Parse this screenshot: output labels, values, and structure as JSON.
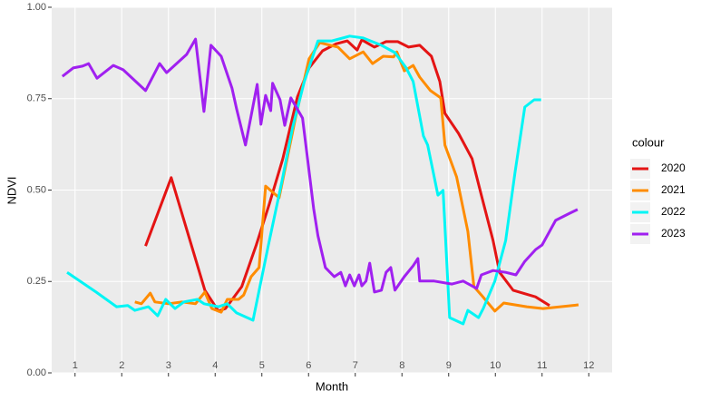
{
  "chart_data": {
    "type": "line",
    "x_label": "Month",
    "y_label": "NDVI",
    "legend_title": "colour",
    "xlim": [
      0.5,
      12.5
    ],
    "xticks": [
      1,
      2,
      3,
      4,
      5,
      6,
      7,
      8,
      9,
      10,
      11,
      12
    ],
    "ylim": [
      0,
      1
    ],
    "yticks": [
      {
        "value": 0,
        "label": "0.00"
      },
      {
        "value": 0.25,
        "label": "0.25"
      },
      {
        "value": 0.5,
        "label": "0.50"
      },
      {
        "value": 0.75,
        "label": "0.75"
      },
      {
        "value": 1,
        "label": "1.00"
      }
    ],
    "grid": true,
    "legend": "right",
    "series": [
      {
        "name": "2020",
        "color": "#e41414",
        "x": [
          2.51,
          3.06,
          3.78,
          4.07,
          4.22,
          4.57,
          4.88,
          5.16,
          5.45,
          5.76,
          6.01,
          6.3,
          6.59,
          6.83,
          7.04,
          7.14,
          7.41,
          7.66,
          7.91,
          8.14,
          8.38,
          8.63,
          8.81,
          8.92,
          9.21,
          9.5,
          9.7,
          9.95,
          10.09,
          10.38,
          10.86,
          11.16
        ],
        "values": [
          0.347,
          0.534,
          0.226,
          0.169,
          0.176,
          0.236,
          0.35,
          0.462,
          0.586,
          0.754,
          0.834,
          0.881,
          0.9,
          0.908,
          0.883,
          0.911,
          0.891,
          0.906,
          0.906,
          0.891,
          0.896,
          0.866,
          0.797,
          0.71,
          0.655,
          0.586,
          0.486,
          0.362,
          0.275,
          0.226,
          0.208,
          0.184
        ]
      },
      {
        "name": "2021",
        "color": "#ff8c00",
        "x": [
          2.28,
          2.42,
          2.61,
          2.71,
          3.0,
          3.29,
          3.58,
          3.78,
          3.93,
          4.13,
          4.26,
          4.5,
          4.61,
          4.77,
          4.94,
          5.08,
          5.37,
          5.72,
          6.01,
          6.24,
          6.63,
          6.88,
          7.17,
          7.37,
          7.6,
          7.82,
          7.89,
          8.05,
          8.24,
          8.38,
          8.61,
          8.83,
          8.92,
          9.17,
          9.41,
          9.54,
          9.7,
          9.99,
          10.18,
          10.67,
          11.02,
          11.78
        ],
        "values": [
          0.194,
          0.189,
          0.218,
          0.194,
          0.189,
          0.194,
          0.189,
          0.221,
          0.176,
          0.166,
          0.201,
          0.201,
          0.213,
          0.263,
          0.288,
          0.511,
          0.479,
          0.697,
          0.859,
          0.903,
          0.891,
          0.859,
          0.878,
          0.846,
          0.866,
          0.864,
          0.878,
          0.826,
          0.841,
          0.809,
          0.772,
          0.752,
          0.623,
          0.536,
          0.387,
          0.236,
          0.213,
          0.169,
          0.191,
          0.181,
          0.176,
          0.186
        ]
      },
      {
        "name": "2022",
        "color": "#00f5f5",
        "x": [
          0.83,
          1.45,
          1.89,
          2.13,
          2.28,
          2.57,
          2.77,
          2.94,
          3.14,
          3.33,
          3.62,
          3.76,
          4.07,
          4.26,
          4.46,
          4.81,
          5.14,
          5.43,
          5.66,
          5.91,
          6.2,
          6.5,
          6.88,
          7.17,
          7.56,
          7.85,
          8.09,
          8.24,
          8.46,
          8.55,
          8.77,
          8.88,
          9.02,
          9.31,
          9.41,
          9.64,
          9.74,
          9.99,
          10.22,
          10.42,
          10.63,
          10.83,
          10.98
        ],
        "values": [
          0.275,
          0.221,
          0.181,
          0.184,
          0.171,
          0.181,
          0.156,
          0.201,
          0.176,
          0.194,
          0.201,
          0.189,
          0.181,
          0.189,
          0.164,
          0.144,
          0.35,
          0.524,
          0.672,
          0.797,
          0.908,
          0.908,
          0.921,
          0.916,
          0.896,
          0.876,
          0.834,
          0.797,
          0.648,
          0.623,
          0.486,
          0.499,
          0.151,
          0.134,
          0.171,
          0.151,
          0.176,
          0.251,
          0.362,
          0.548,
          0.727,
          0.747,
          0.747
        ]
      },
      {
        "name": "2023",
        "color": "#a020f0",
        "x": [
          0.73,
          0.96,
          1.16,
          1.29,
          1.47,
          1.82,
          2.03,
          2.51,
          2.81,
          2.96,
          3.39,
          3.58,
          3.76,
          3.91,
          4.13,
          4.36,
          4.46,
          4.65,
          4.9,
          4.98,
          5.08,
          5.19,
          5.23,
          5.39,
          5.49,
          5.62,
          5.87,
          6.11,
          6.2,
          6.36,
          6.55,
          6.69,
          6.79,
          6.88,
          6.98,
          7.08,
          7.14,
          7.23,
          7.31,
          7.41,
          7.56,
          7.66,
          7.76,
          7.85,
          8.05,
          8.24,
          8.34,
          8.38,
          8.69,
          9.07,
          9.31,
          9.6,
          9.7,
          9.95,
          10.22,
          10.44,
          10.63,
          10.86,
          11.0,
          11.29,
          11.6,
          11.76
        ],
        "values": [
          0.811,
          0.834,
          0.839,
          0.846,
          0.806,
          0.841,
          0.829,
          0.772,
          0.846,
          0.821,
          0.871,
          0.913,
          0.715,
          0.896,
          0.866,
          0.779,
          0.722,
          0.623,
          0.789,
          0.68,
          0.759,
          0.717,
          0.792,
          0.747,
          0.677,
          0.752,
          0.697,
          0.449,
          0.375,
          0.288,
          0.263,
          0.275,
          0.238,
          0.268,
          0.238,
          0.268,
          0.238,
          0.251,
          0.3,
          0.221,
          0.226,
          0.275,
          0.288,
          0.226,
          0.263,
          0.293,
          0.313,
          0.251,
          0.251,
          0.243,
          0.251,
          0.231,
          0.268,
          0.28,
          0.275,
          0.268,
          0.305,
          0.337,
          0.35,
          0.417,
          0.437,
          0.447
        ]
      }
    ]
  }
}
